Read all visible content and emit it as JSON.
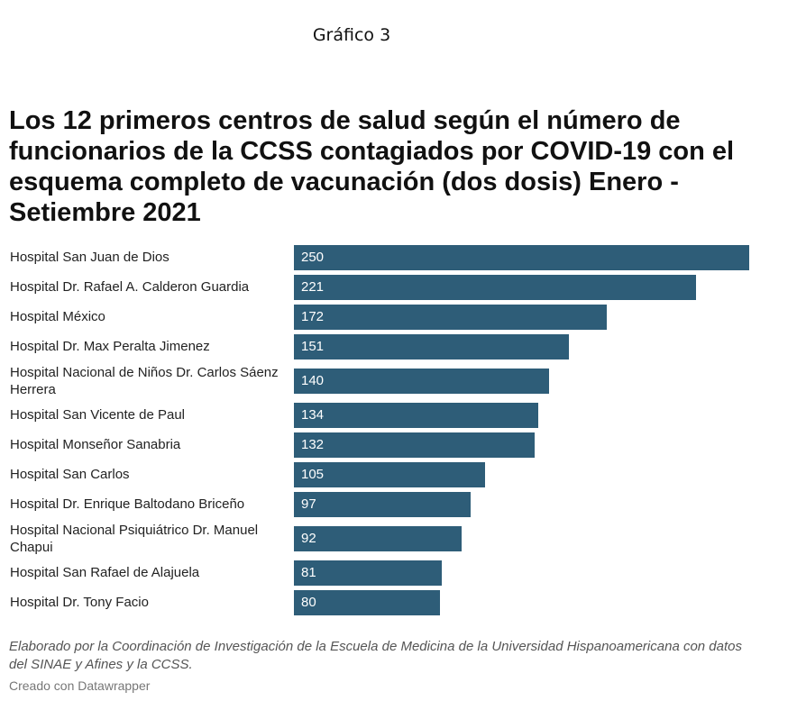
{
  "figure_label": "Gráfico 3",
  "chart_data": {
    "type": "bar",
    "orientation": "horizontal",
    "title": "Los 12 primeros centros de salud según el número de funcionarios de la CCSS contagiados por COVID-19 con el esquema completo de vacunación (dos dosis)  Enero - Setiembre 2021",
    "categories": [
      "Hospital San Juan de Dios",
      "Hospital Dr. Rafael A. Calderon Guardia",
      "Hospital México",
      "Hospital Dr. Max Peralta Jimenez",
      "Hospital Nacional de Niños Dr. Carlos Sáenz Herrera",
      "Hospital San Vicente de Paul",
      "Hospital Monseñor Sanabria",
      "Hospital San Carlos",
      "Hospital Dr. Enrique Baltodano Briceño",
      "Hospital Nacional Psiquiátrico Dr. Manuel Chapui",
      "Hospital San Rafael de Alajuela",
      "Hospital Dr. Tony Facio"
    ],
    "values": [
      250,
      221,
      172,
      151,
      140,
      134,
      132,
      105,
      97,
      92,
      81,
      80
    ],
    "xlim": [
      0,
      250
    ],
    "bar_color": "#2e5d78",
    "value_label_color": "#ffffff",
    "grid": false,
    "legend": "none"
  },
  "notes": "Elaborado por la Coordinación de Investigación de la Escuela de Medicina de la Universidad Hispanoamericana con datos del SINAE y Afines  y la CCSS.",
  "credit": "Creado con Datawrapper"
}
